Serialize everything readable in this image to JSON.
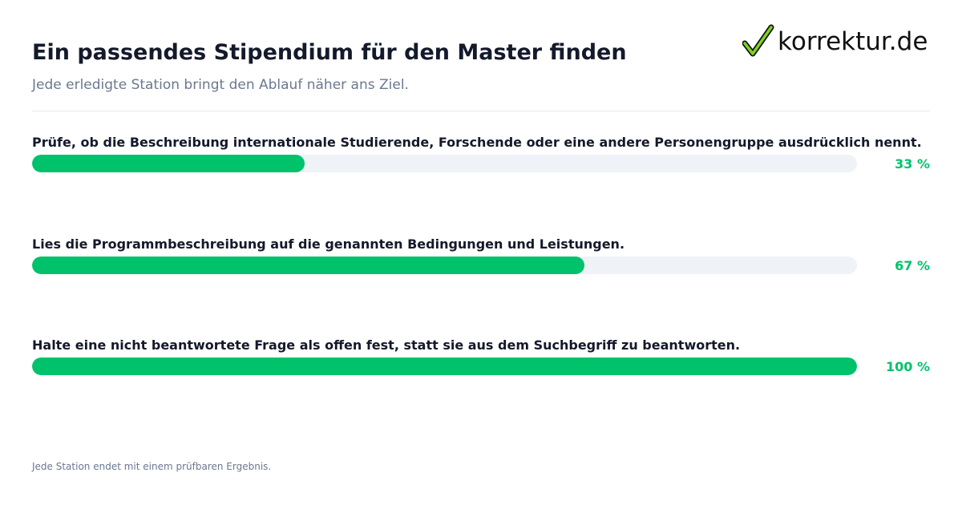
{
  "header": {
    "title": "Ein passendes Stipendium für den Master finden",
    "subtitle": "Jede erledigte Station bringt den Ablauf näher ans Ziel.",
    "logo_text": "korrektur.de",
    "logo_icon": "checkmark-icon"
  },
  "colors": {
    "accent": "#00c26b",
    "track": "#eff2f7",
    "title": "#14192b",
    "muted": "#6b7890"
  },
  "chart_data": {
    "type": "bar",
    "orientation": "horizontal",
    "categories": [
      "Prüfe, ob die Beschreibung internationale Studierende, Forschende oder eine andere Personengruppe ausdrücklich nennt.",
      "Lies die Programmbeschreibung auf die genannten Bedingungen und Leistungen.",
      "Halte eine nicht beantwortete Frage als offen fest, statt sie aus dem Suchbegriff zu beantworten."
    ],
    "values": [
      33,
      67,
      100
    ],
    "value_labels": [
      "33 %",
      "67 %",
      "100 %"
    ],
    "xlim": [
      0,
      100
    ],
    "grid": false,
    "title": "Ein passendes Stipendium für den Master finden",
    "subtitle": "Jede erledigte Station bringt den Ablauf näher ans Ziel."
  },
  "footer": {
    "note": "Jede Station endet mit einem prüfbaren Ergebnis."
  }
}
